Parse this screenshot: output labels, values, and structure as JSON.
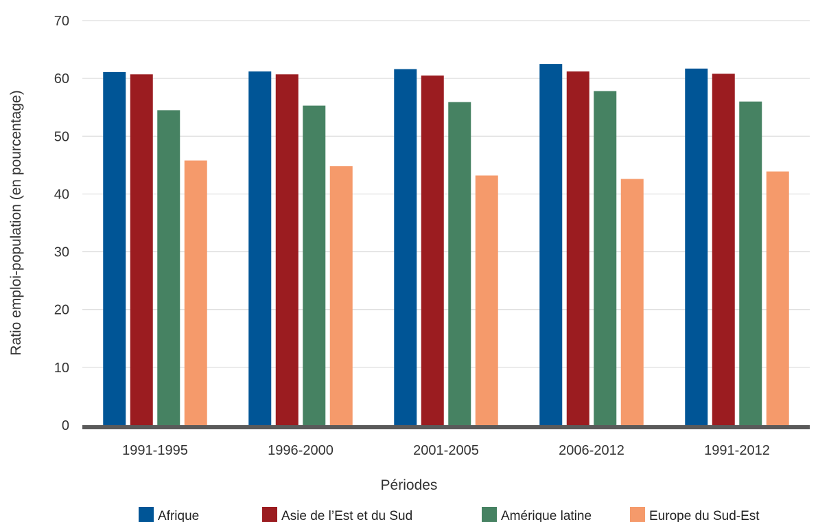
{
  "chart_data": {
    "type": "bar",
    "title": "",
    "xlabel": "Périodes",
    "ylabel": "Ratio emploi-population (en pourcentage)",
    "ylim": [
      0,
      70
    ],
    "yticks": [
      0,
      10,
      20,
      30,
      40,
      50,
      60,
      70
    ],
    "grid": true,
    "legend_position": "bottom",
    "categories": [
      "1991-1995",
      "1996-2000",
      "2001-2005",
      "2006-2012",
      "1991-2012"
    ],
    "series": [
      {
        "name": "Afrique",
        "color": "#005596",
        "values": [
          61.1,
          61.2,
          61.6,
          62.5,
          61.7
        ]
      },
      {
        "name": "Asie de l’Est et du Sud",
        "color": "#9b1c20",
        "values": [
          60.7,
          60.7,
          60.5,
          61.2,
          60.8
        ]
      },
      {
        "name": "Amérique latine",
        "color": "#468262",
        "values": [
          54.5,
          55.3,
          55.9,
          57.8,
          56.0
        ]
      },
      {
        "name": "Europe du Sud-Est",
        "color": "#f59a6b",
        "values": [
          45.8,
          44.8,
          43.2,
          42.6,
          43.9
        ]
      }
    ]
  }
}
